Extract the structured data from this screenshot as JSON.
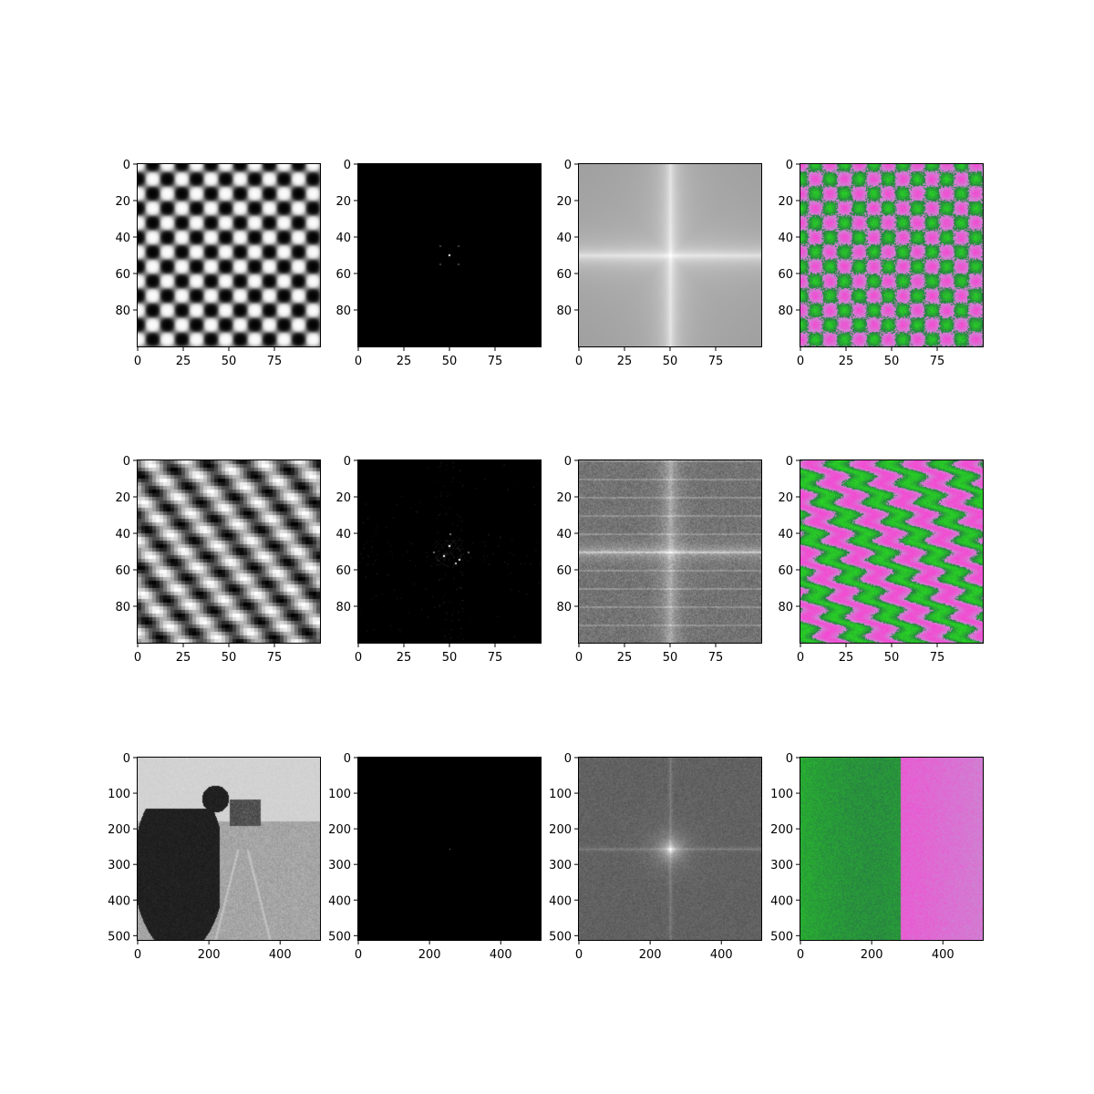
{
  "figure": {
    "rows": [
      {
        "key": "checkerboard",
        "xticks": [
          "0",
          "25",
          "50",
          "75"
        ],
        "yticks": [
          "0",
          "20",
          "40",
          "60",
          "80"
        ],
        "xtick_values": [
          0,
          25,
          50,
          75
        ],
        "ytick_values": [
          0,
          20,
          40,
          60,
          80
        ],
        "extent": 100
      },
      {
        "key": "wave",
        "xticks": [
          "0",
          "25",
          "50",
          "75"
        ],
        "yticks": [
          "0",
          "20",
          "40",
          "60",
          "80"
        ],
        "xtick_values": [
          0,
          25,
          50,
          75
        ],
        "ytick_values": [
          0,
          20,
          40,
          60,
          80
        ],
        "extent": 100
      },
      {
        "key": "camera",
        "xticks": [
          "0",
          "200",
          "400"
        ],
        "yticks": [
          "0",
          "100",
          "200",
          "300",
          "400",
          "500"
        ],
        "xtick_values": [
          0,
          200,
          400
        ],
        "ytick_values": [
          0,
          100,
          200,
          300,
          400,
          500
        ],
        "extent": 512
      }
    ],
    "columns": [
      "image",
      "fft-magnitude",
      "log-fft-magnitude",
      "phase-color"
    ]
  },
  "chart_data": [
    {
      "type": "heatmap",
      "row": 1,
      "col": 1,
      "content": "checkerboard grayscale image",
      "x_range": [
        0,
        100
      ],
      "y_range": [
        0,
        100
      ]
    },
    {
      "type": "heatmap",
      "row": 1,
      "col": 2,
      "content": "FFT magnitude",
      "x_range": [
        0,
        100
      ],
      "y_range": [
        0,
        100
      ]
    },
    {
      "type": "heatmap",
      "row": 1,
      "col": 3,
      "content": "log FFT magnitude",
      "x_range": [
        0,
        100
      ],
      "y_range": [
        0,
        100
      ]
    },
    {
      "type": "heatmap",
      "row": 1,
      "col": 4,
      "content": "phase color image",
      "x_range": [
        0,
        100
      ],
      "y_range": [
        0,
        100
      ]
    },
    {
      "type": "heatmap",
      "row": 2,
      "col": 1,
      "content": "diagonal wave grayscale image",
      "x_range": [
        0,
        100
      ],
      "y_range": [
        0,
        100
      ]
    },
    {
      "type": "heatmap",
      "row": 2,
      "col": 2,
      "content": "FFT magnitude",
      "x_range": [
        0,
        100
      ],
      "y_range": [
        0,
        100
      ]
    },
    {
      "type": "heatmap",
      "row": 2,
      "col": 3,
      "content": "log FFT magnitude",
      "x_range": [
        0,
        100
      ],
      "y_range": [
        0,
        100
      ]
    },
    {
      "type": "heatmap",
      "row": 2,
      "col": 4,
      "content": "phase color image",
      "x_range": [
        0,
        100
      ],
      "y_range": [
        0,
        100
      ]
    },
    {
      "type": "heatmap",
      "row": 3,
      "col": 1,
      "content": "cameraman grayscale photo",
      "x_range": [
        0,
        512
      ],
      "y_range": [
        0,
        512
      ]
    },
    {
      "type": "heatmap",
      "row": 3,
      "col": 2,
      "content": "FFT magnitude",
      "x_range": [
        0,
        512
      ],
      "y_range": [
        0,
        512
      ]
    },
    {
      "type": "heatmap",
      "row": 3,
      "col": 3,
      "content": "log FFT magnitude",
      "x_range": [
        0,
        512
      ],
      "y_range": [
        0,
        512
      ]
    },
    {
      "type": "heatmap",
      "row": 3,
      "col": 4,
      "content": "phase color image",
      "x_range": [
        0,
        512
      ],
      "y_range": [
        0,
        512
      ]
    }
  ]
}
